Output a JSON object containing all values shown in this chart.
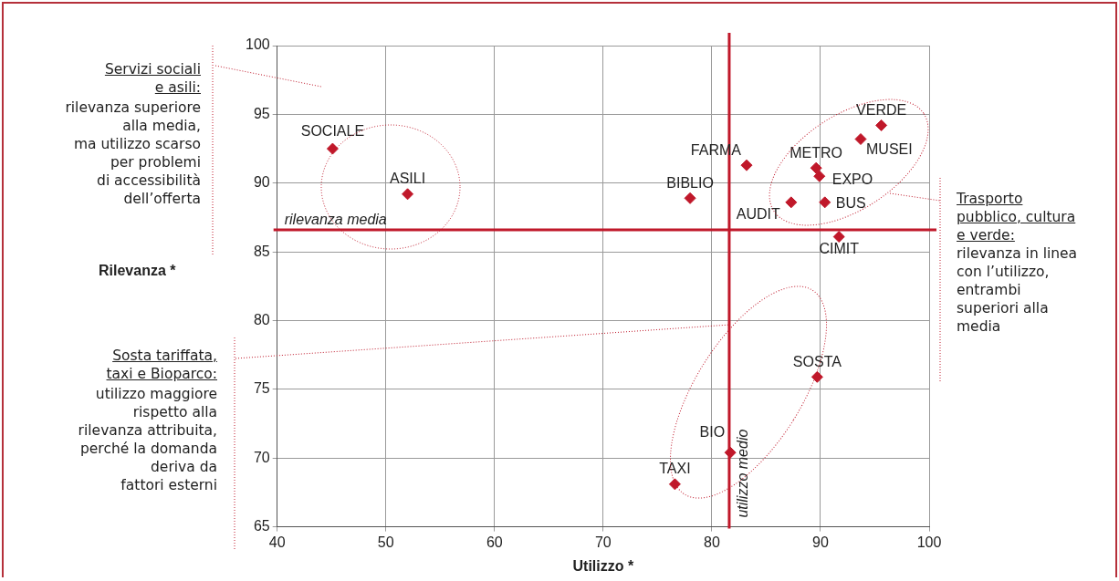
{
  "chart_data": {
    "type": "scatter",
    "xlabel": "Utilizzo *",
    "ylabel": "Rilevanza *",
    "x": [
      45.1,
      52.0,
      78.0,
      83.2,
      89.6,
      89.9,
      95.6,
      93.7,
      87.3,
      90.4,
      91.7,
      89.7,
      81.7,
      76.6
    ],
    "series": [
      {
        "color": "#c0182a",
        "values": [
          92.5,
          89.2,
          88.9,
          91.3,
          91.1,
          90.5,
          94.2,
          93.2,
          88.6,
          88.6,
          86.1,
          75.9,
          70.4,
          68.1
        ]
      }
    ],
    "xlim": [
      40,
      100
    ],
    "xticks": [
      40,
      50,
      60,
      70,
      80,
      90,
      100
    ],
    "ylim": [
      65,
      100
    ],
    "yticks": [
      65,
      70,
      75,
      80,
      85,
      90,
      95,
      100
    ],
    "grid": true,
    "legend": false,
    "marker": "diamond",
    "ref_lines": [
      {
        "axis": "y",
        "value": 86.6,
        "label": "rilevanza media",
        "color": "#c0182a"
      },
      {
        "axis": "x",
        "value": 81.6,
        "label": "utilizzo medio",
        "color": "#c0182a"
      }
    ],
    "annotations": [
      {
        "text": "SOCIALE",
        "x": 45.1,
        "y": 92.5
      },
      {
        "text": "ASILI",
        "x": 52.0,
        "y": 89.2
      },
      {
        "text": "BIBLIO",
        "x": 78.0,
        "y": 88.9
      },
      {
        "text": "FARMA",
        "x": 83.2,
        "y": 91.3
      },
      {
        "text": "METRO",
        "x": 89.6,
        "y": 91.1
      },
      {
        "text": "EXPO",
        "x": 89.9,
        "y": 90.5
      },
      {
        "text": "VERDE",
        "x": 95.6,
        "y": 94.2
      },
      {
        "text": "MUSEI",
        "x": 93.7,
        "y": 93.2
      },
      {
        "text": "AUDIT",
        "x": 87.3,
        "y": 88.6
      },
      {
        "text": "BUS",
        "x": 90.4,
        "y": 88.6
      },
      {
        "text": "CIMIT",
        "x": 91.7,
        "y": 86.1
      },
      {
        "text": "SOSTA",
        "x": 89.7,
        "y": 75.9
      },
      {
        "text": "BIO",
        "x": 81.7,
        "y": 70.4
      },
      {
        "text": "TAXI",
        "x": 76.6,
        "y": 68.1
      },
      "Servizi sociali\ne asili:",
      "rilevanza superiore\nalla media,\nma utilizzo scarso\nper problemi\ndi accessibilità\ndell’offerta",
      "Trasporto\npubblico, cultura\ne verde:",
      "rilevanza in linea\ncon l’utilizzo,\nentrambi\nsuperiori alla\nmedia",
      "Sosta tariffata,\ntaxi e Bioparco:",
      "utilizzo maggiore\nrispetto alla\nrilevanza attribuita,\nperché la domanda\nderiva da\nfattori esterni"
    ]
  }
}
